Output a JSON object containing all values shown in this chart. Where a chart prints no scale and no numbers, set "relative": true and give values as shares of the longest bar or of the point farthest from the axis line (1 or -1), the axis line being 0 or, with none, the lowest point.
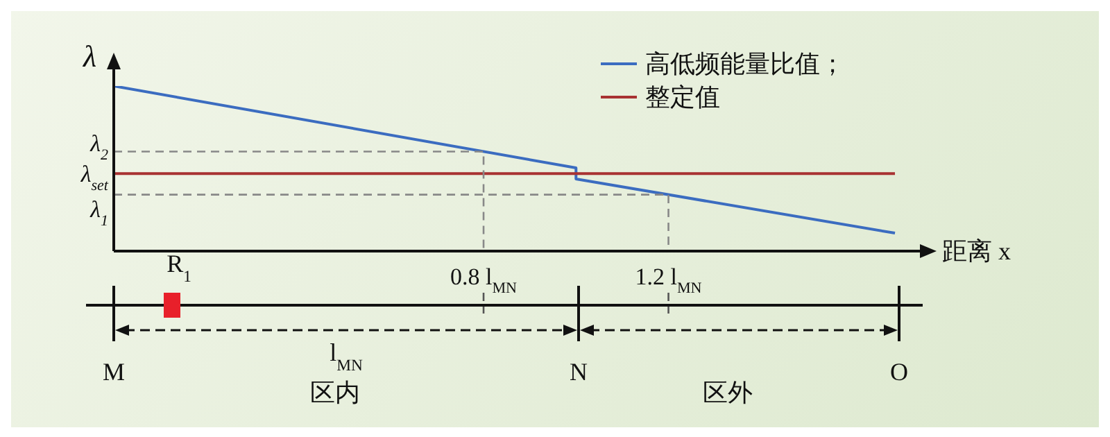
{
  "chart_data": {
    "type": "line",
    "relative": true,
    "ylabel": "λ",
    "xlabel": "距离 x",
    "xlim": [
      0,
      1.75
    ],
    "xticks": [
      {
        "value": 0.8,
        "label": "0.8 l$_{MN}$"
      },
      {
        "value": 1.2,
        "label": "1.2 l$_{MN}$"
      }
    ],
    "legend": "top right",
    "line_style": "solid",
    "marker": "none",
    "series": [
      {
        "name": "高低频能量比值；",
        "color": "#3b6cc0",
        "x": [
          0,
          1,
          1,
          1.69
        ],
        "values": [
          1,
          0.504,
          0.437,
          0.109
        ]
      },
      {
        "name": "整定值",
        "color": "#a83232",
        "x": [
          0,
          1.69
        ],
        "values": [
          0.47,
          0.47
        ]
      },
      {
        "color": "#888888",
        "line_style": "dashed",
        "x": [
          0,
          0.8,
          0.8
        ],
        "values": [
          0.603,
          0.603,
          0
        ]
      },
      {
        "color": "#888888",
        "line_style": "dashed",
        "x": [
          0,
          1.2,
          1.2
        ],
        "values": [
          0.342,
          0.342,
          0
        ]
      }
    ],
    "annotations": [
      "λ$_{2}$",
      "λ$_{1}$",
      "λ$_{set}$",
      "R$_{1}$",
      "l$_{MN}$",
      "M",
      "N",
      "O",
      "区内",
      "区外"
    ]
  }
}
